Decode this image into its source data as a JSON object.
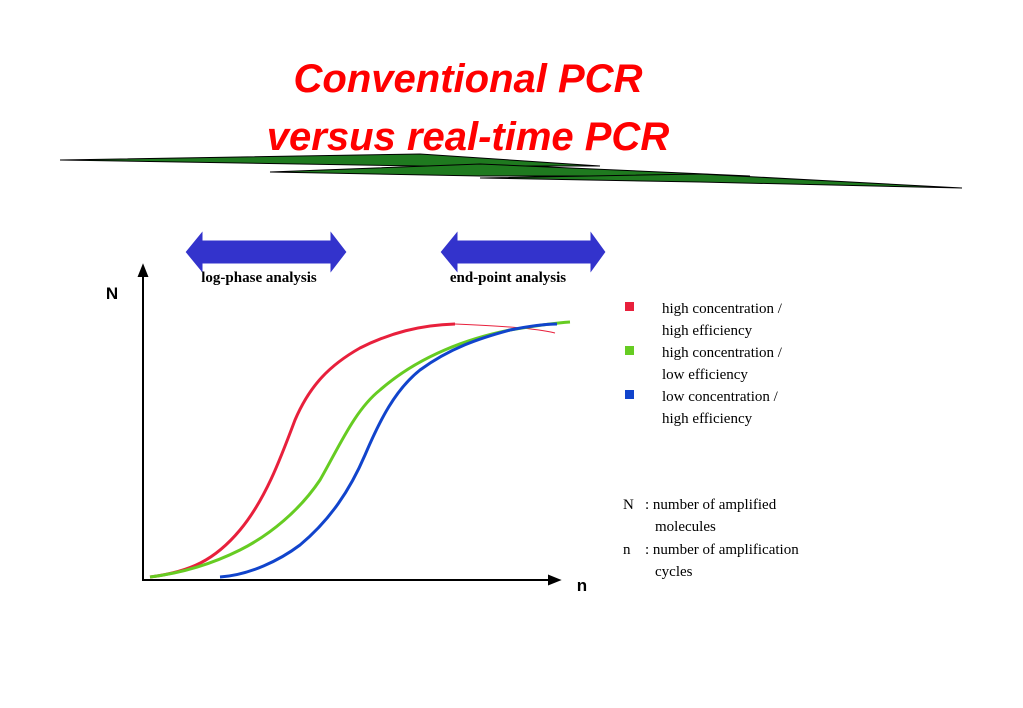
{
  "title": [
    "Conventional PCR",
    "versus real-time PCR"
  ],
  "arrows": [
    "log-phase analysis",
    "end-point analysis"
  ],
  "axes": {
    "y": "N",
    "x": "n"
  },
  "legend": [
    {
      "label": [
        "high concentration /",
        "high efficiency"
      ],
      "color": "#e8203c"
    },
    {
      "label": [
        "high concentration /",
        "low efficiency"
      ],
      "color": "#66cc22"
    },
    {
      "label": [
        "low concentration /",
        "high efficiency"
      ],
      "color": "#1144cc"
    }
  ],
  "notes": [
    {
      "symbol": "N",
      "text": [
        ": number of amplified",
        "molecules"
      ]
    },
    {
      "symbol": "n",
      "text": [
        ": number of amplification",
        "cycles"
      ]
    }
  ]
}
